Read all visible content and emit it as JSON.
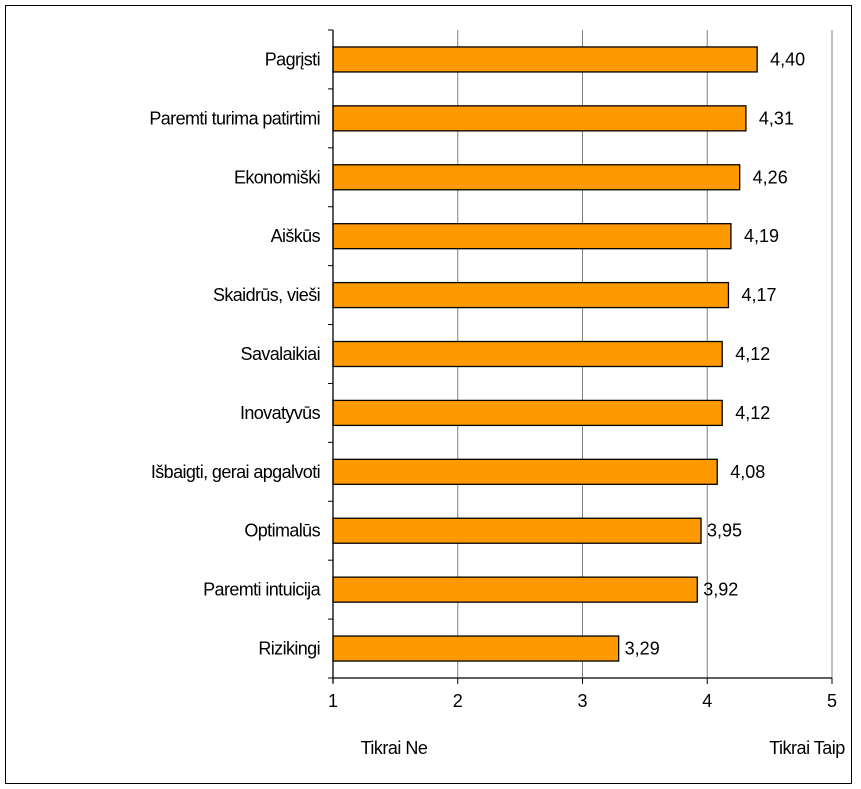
{
  "chart_data": {
    "type": "bar",
    "orientation": "horizontal",
    "categories": [
      "Pagrįsti",
      "Paremti turima patirtimi",
      "Ekonomiški",
      "Aiškūs",
      "Skaidrūs, vieši",
      "Savalaikiai",
      "Inovatyvūs",
      "Išbaigti, gerai apgalvoti",
      "Optimalūs",
      "Paremti intuicija",
      "Rizikingi"
    ],
    "values": [
      4.4,
      4.31,
      4.26,
      4.19,
      4.17,
      4.12,
      4.12,
      4.08,
      3.95,
      3.92,
      3.29
    ],
    "value_labels": [
      "4,40",
      "4,31",
      "4,26",
      "4,19",
      "4,17",
      "4,12",
      "4,12",
      "4,08",
      "3,95",
      "3,92",
      "3,29"
    ],
    "xlim": [
      1,
      5
    ],
    "xticks": [
      1,
      2,
      3,
      4,
      5
    ],
    "xtick_labels": [
      "1",
      "2",
      "3",
      "4",
      "5"
    ],
    "scale_low_label": "Tikrai Ne",
    "scale_high_label": "Tikrai Taip",
    "grid": "vertical",
    "legend": "none",
    "bar_color": "#FF9900",
    "bar_edge_color": "#000000"
  }
}
